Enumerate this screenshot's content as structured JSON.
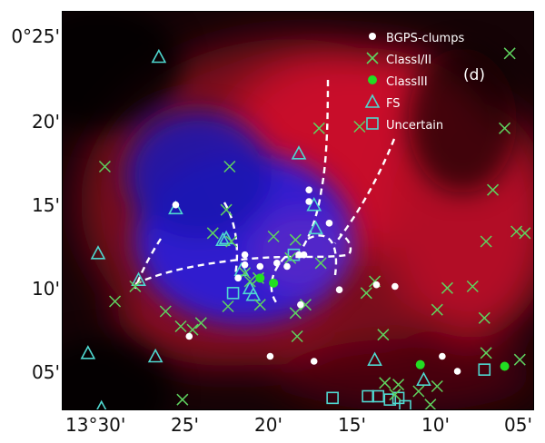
{
  "figure": {
    "panel_label": "(d)",
    "y_ticks": [
      "0°25'",
      "20'",
      "15'",
      "10'",
      "05'"
    ],
    "x_ticks": [
      "13°30'",
      "25'",
      "20'",
      "15'",
      "10'",
      "05'"
    ],
    "legend": [
      {
        "key": "bgps",
        "label": "BGPS-clumps",
        "symbol": "filled-circle",
        "color": "#ffffff"
      },
      {
        "key": "class12",
        "label": "ClassI/II",
        "symbol": "x-mark",
        "color": "#5fd35f"
      },
      {
        "key": "class3",
        "label": "ClassIII",
        "symbol": "filled-circle",
        "color": "#22dd22"
      },
      {
        "key": "fs",
        "label": "FS",
        "symbol": "triangle",
        "color": "#4fd8d0"
      },
      {
        "key": "uncertain",
        "label": "Uncertain",
        "symbol": "square",
        "color": "#4fd8d0"
      }
    ]
  },
  "chart_data": {
    "type": "scatter",
    "xlabel": "",
    "ylabel": "",
    "xlim": [
      31.5,
      3.5
    ],
    "ylim": [
      2.5,
      26.5
    ],
    "colors": {
      "background_red": "#c8102a",
      "background_blue": "#2222ff",
      "filament": "#ffffff"
    },
    "series": [
      {
        "name": "BGPS-clumps",
        "points": [
          [
            24.8,
            14.9
          ],
          [
            20.7,
            11.3
          ],
          [
            19.8,
            11.2
          ],
          [
            20.7,
            11.9
          ],
          [
            18.8,
            11.4
          ],
          [
            17.5,
            11.9
          ],
          [
            16.9,
            15.8
          ],
          [
            16.9,
            15.1
          ],
          [
            15.7,
            13.8
          ],
          [
            17.2,
            11.9
          ],
          [
            21.1,
            10.5
          ],
          [
            18.2,
            11.2
          ],
          [
            15.1,
            9.8
          ],
          [
            12.9,
            10.1
          ],
          [
            11.8,
            10.0
          ],
          [
            19.2,
            5.8
          ],
          [
            16.6,
            5.5
          ],
          [
            17.4,
            8.9
          ],
          [
            24.0,
            7.0
          ],
          [
            9.0,
            5.8
          ],
          [
            8.1,
            4.9
          ]
        ]
      },
      {
        "name": "ClassI/II",
        "points": [
          [
            29.0,
            17.2
          ],
          [
            21.6,
            17.2
          ],
          [
            16.3,
            19.5
          ],
          [
            13.9,
            19.6
          ],
          [
            25.4,
            8.5
          ],
          [
            28.4,
            9.1
          ],
          [
            27.2,
            10.0
          ],
          [
            22.6,
            13.2
          ],
          [
            21.8,
            14.6
          ],
          [
            21.5,
            12.7
          ],
          [
            21.7,
            8.8
          ],
          [
            19.8,
            8.9
          ],
          [
            17.7,
            8.4
          ],
          [
            17.1,
            8.9
          ],
          [
            19.0,
            13.0
          ],
          [
            18.0,
            11.7
          ],
          [
            17.7,
            12.8
          ],
          [
            16.2,
            11.4
          ],
          [
            13.0,
            10.3
          ],
          [
            13.5,
            9.6
          ],
          [
            12.5,
            7.1
          ],
          [
            12.4,
            4.2
          ],
          [
            11.6,
            4.1
          ],
          [
            11.8,
            3.5
          ],
          [
            10.4,
            3.7
          ],
          [
            9.7,
            2.9
          ],
          [
            9.3,
            4.0
          ],
          [
            8.7,
            9.9
          ],
          [
            9.3,
            8.6
          ],
          [
            7.2,
            10.0
          ],
          [
            6.5,
            8.1
          ],
          [
            6.4,
            6.0
          ],
          [
            6.4,
            12.7
          ],
          [
            6.0,
            15.8
          ],
          [
            5.3,
            19.5
          ],
          [
            5.0,
            24.0
          ],
          [
            4.6,
            13.3
          ],
          [
            4.1,
            13.2
          ],
          [
            4.4,
            5.6
          ],
          [
            17.6,
            7.0
          ],
          [
            24.5,
            7.6
          ],
          [
            23.8,
            7.4
          ],
          [
            23.3,
            7.8
          ],
          [
            24.4,
            3.2
          ],
          [
            19.9,
            10.5
          ],
          [
            20.4,
            10.3
          ],
          [
            20.7,
            10.8
          ]
        ]
      },
      {
        "name": "ClassIII",
        "points": [
          [
            19.8,
            10.5
          ],
          [
            19.0,
            10.2
          ],
          [
            10.3,
            5.3
          ],
          [
            5.3,
            5.2
          ]
        ]
      },
      {
        "name": "FS",
        "points": [
          [
            25.8,
            23.8
          ],
          [
            24.8,
            14.7
          ],
          [
            29.4,
            12.0
          ],
          [
            27.0,
            10.4
          ],
          [
            22.0,
            12.8
          ],
          [
            21.8,
            12.9
          ],
          [
            20.9,
            11.0
          ],
          [
            20.4,
            9.9
          ],
          [
            20.2,
            9.5
          ],
          [
            17.5,
            18.0
          ],
          [
            16.6,
            14.9
          ],
          [
            16.5,
            13.5
          ],
          [
            13.0,
            5.6
          ],
          [
            10.1,
            4.4
          ],
          [
            30.0,
            6.0
          ],
          [
            26.0,
            5.8
          ],
          [
            29.2,
            2.7
          ]
        ]
      },
      {
        "name": "Uncertain",
        "points": [
          [
            17.8,
            11.9
          ],
          [
            21.4,
            9.6
          ],
          [
            15.5,
            3.3
          ],
          [
            13.4,
            3.4
          ],
          [
            12.8,
            3.4
          ],
          [
            12.1,
            3.2
          ],
          [
            11.6,
            3.3
          ],
          [
            11.2,
            2.8
          ],
          [
            6.5,
            5.0
          ]
        ]
      }
    ]
  }
}
